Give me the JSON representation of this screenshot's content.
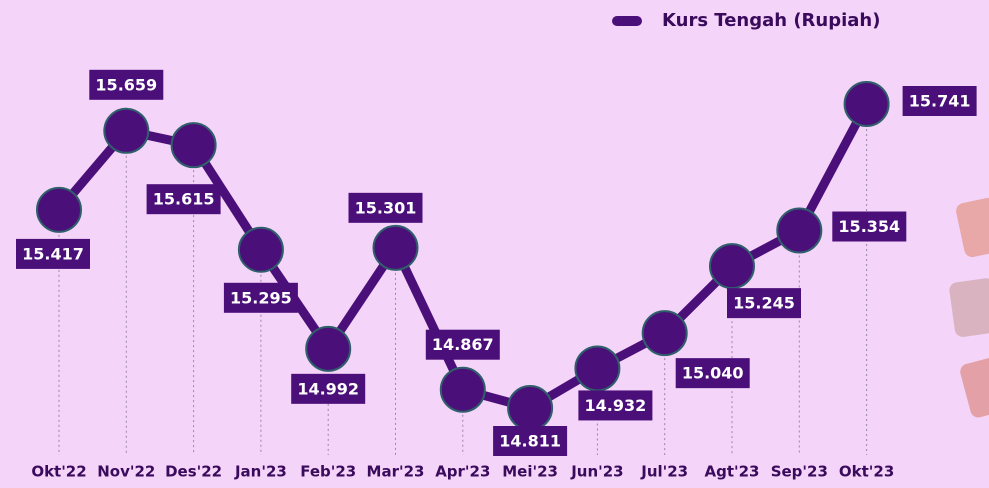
{
  "chart_data": {
    "type": "line",
    "categories": [
      "Okt'22",
      "Nov'22",
      "Des'22",
      "Jan'23",
      "Feb'23",
      "Mar'23",
      "Apr'23",
      "Mei'23",
      "Jun'23",
      "Jul'23",
      "Agt'23",
      "Sep'23",
      "Okt'23"
    ],
    "series": [
      {
        "name": "Kurs Tengah (Rupiah)",
        "color": "#4b0f7a",
        "values": [
          15417,
          15659,
          15615,
          15295,
          14992,
          15301,
          14867,
          14811,
          14932,
          15040,
          15245,
          15354,
          15741
        ],
        "value_labels": [
          "15.417",
          "15.659",
          "15.615",
          "15.295",
          "14.992",
          "15.301",
          "14.867",
          "14.811",
          "14.932",
          "15.040",
          "15.245",
          "15.354",
          "15.741"
        ]
      }
    ],
    "legend": "top-right"
  }
}
